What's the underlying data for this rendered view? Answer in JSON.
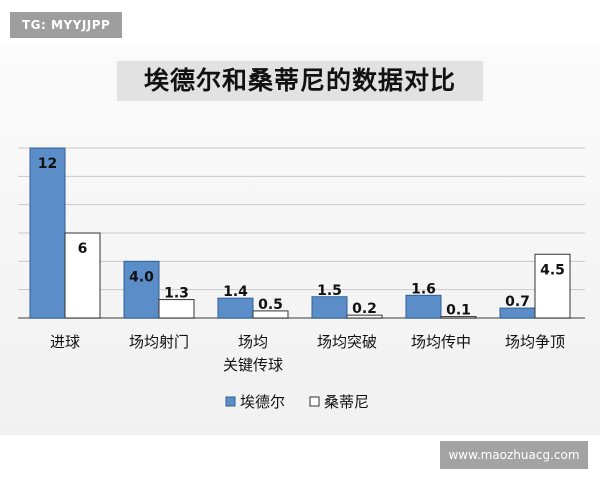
{
  "watermark": "TG: MYYJJPP",
  "site_badge": "www.maozhuacg.com",
  "chart_data": {
    "type": "bar",
    "title": "埃德尔和桑蒂尼的数据对比",
    "categories": [
      "进球",
      "场均射门",
      "场均\n关键传球",
      "场均突破",
      "场均传中",
      "场均争顶"
    ],
    "series": [
      {
        "name": "埃德尔",
        "values": [
          12,
          4.0,
          1.4,
          1.5,
          1.6,
          0.7
        ],
        "labels": [
          "12",
          "4.0",
          "1.4",
          "1.5",
          "1.6",
          "0.7"
        ],
        "color": "#5b8ec9"
      },
      {
        "name": "桑蒂尼",
        "values": [
          6,
          1.3,
          0.5,
          0.2,
          0.1,
          4.5
        ],
        "labels": [
          "6",
          "1.3",
          "0.5",
          "0.2",
          "0.1",
          "4.5"
        ],
        "color": "#ffffff"
      }
    ],
    "ylim": [
      0,
      12
    ],
    "grid": true,
    "legend_position": "bottom"
  }
}
